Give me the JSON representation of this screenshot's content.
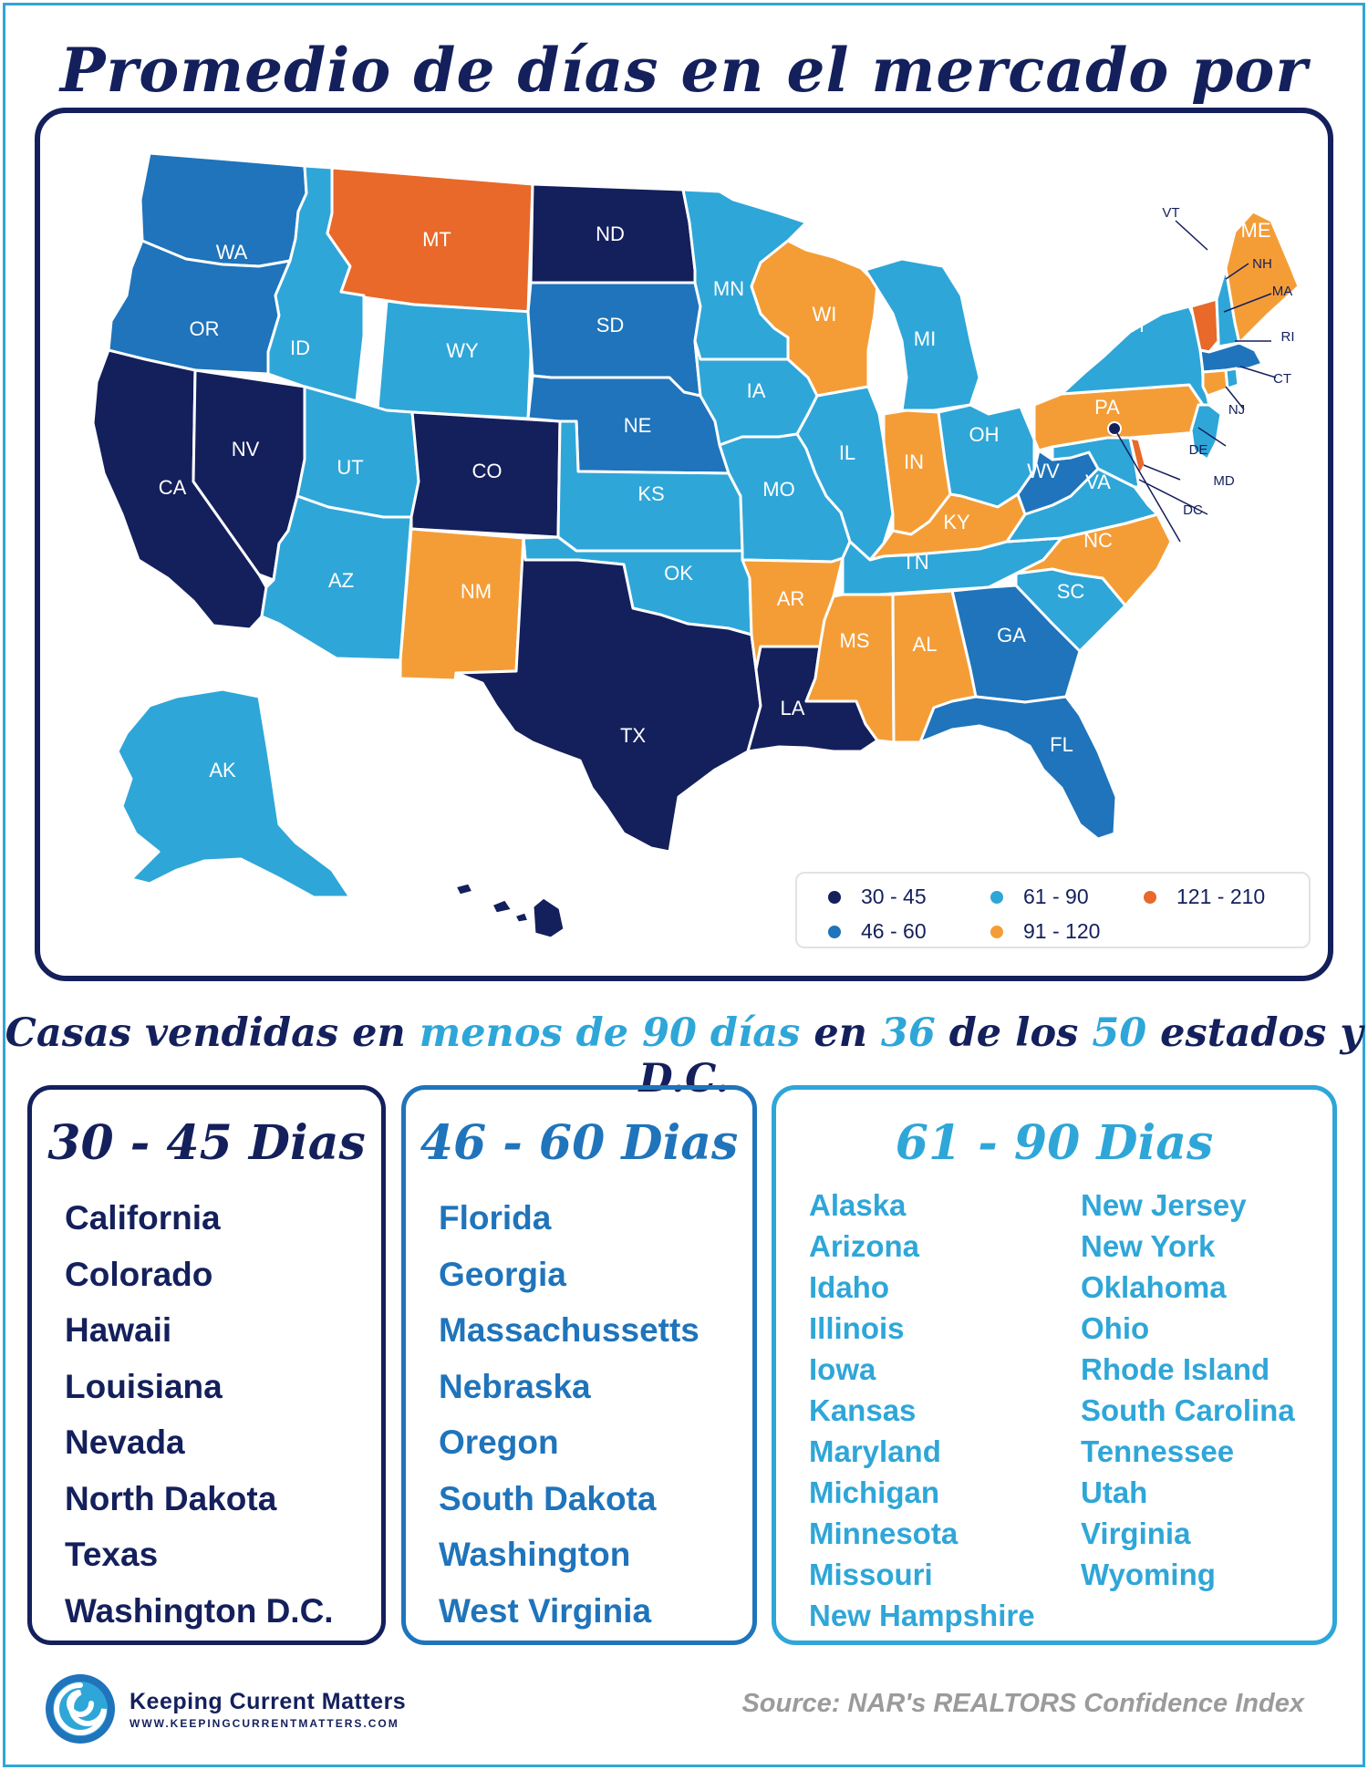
{
  "title": "Promedio de días en el mercado por estado",
  "colors": {
    "c30_45": "#14205c",
    "c46_60": "#1f74bb",
    "c61_90": "#2fa6d8",
    "c91_120": "#f49d37",
    "c121_210": "#e8692a",
    "outline": "#14205c"
  },
  "map": {
    "states": [
      {
        "abbr": "WA",
        "range": "46 - 60"
      },
      {
        "abbr": "OR",
        "range": "46 - 60"
      },
      {
        "abbr": "CA",
        "range": "30 - 45"
      },
      {
        "abbr": "NV",
        "range": "30 - 45"
      },
      {
        "abbr": "ID",
        "range": "61 - 90"
      },
      {
        "abbr": "MT",
        "range": "121 - 210"
      },
      {
        "abbr": "WY",
        "range": "61 - 90"
      },
      {
        "abbr": "UT",
        "range": "61 - 90"
      },
      {
        "abbr": "AZ",
        "range": "61 - 90"
      },
      {
        "abbr": "CO",
        "range": "30 - 45"
      },
      {
        "abbr": "NM",
        "range": "91 - 120"
      },
      {
        "abbr": "ND",
        "range": "30 - 45"
      },
      {
        "abbr": "SD",
        "range": "46 - 60"
      },
      {
        "abbr": "NE",
        "range": "46 - 60"
      },
      {
        "abbr": "KS",
        "range": "61 - 90"
      },
      {
        "abbr": "OK",
        "range": "61 - 90"
      },
      {
        "abbr": "TX",
        "range": "30 - 45"
      },
      {
        "abbr": "MN",
        "range": "61 - 90"
      },
      {
        "abbr": "IA",
        "range": "61 - 90"
      },
      {
        "abbr": "MO",
        "range": "61 - 90"
      },
      {
        "abbr": "AR",
        "range": "91 - 120"
      },
      {
        "abbr": "LA",
        "range": "30 - 45"
      },
      {
        "abbr": "WI",
        "range": "91 - 120"
      },
      {
        "abbr": "IL",
        "range": "61 - 90"
      },
      {
        "abbr": "MI",
        "range": "61 - 90"
      },
      {
        "abbr": "IN",
        "range": "91 - 120"
      },
      {
        "abbr": "OH",
        "range": "61 - 90"
      },
      {
        "abbr": "KY",
        "range": "91 - 120"
      },
      {
        "abbr": "TN",
        "range": "61 - 90"
      },
      {
        "abbr": "MS",
        "range": "91 - 120"
      },
      {
        "abbr": "AL",
        "range": "91 - 120"
      },
      {
        "abbr": "GA",
        "range": "46 - 60"
      },
      {
        "abbr": "FL",
        "range": "46 - 60"
      },
      {
        "abbr": "SC",
        "range": "61 - 90"
      },
      {
        "abbr": "NC",
        "range": "91 - 120"
      },
      {
        "abbr": "VA",
        "range": "61 - 90"
      },
      {
        "abbr": "WV",
        "range": "46 - 60"
      },
      {
        "abbr": "PA",
        "range": "91 - 120"
      },
      {
        "abbr": "NY",
        "range": "61 - 90"
      },
      {
        "abbr": "VT",
        "range": "121 - 210"
      },
      {
        "abbr": "NH",
        "range": "61 - 90"
      },
      {
        "abbr": "ME",
        "range": "91 - 120"
      },
      {
        "abbr": "MA",
        "range": "46 - 60"
      },
      {
        "abbr": "RI",
        "range": "61 - 90"
      },
      {
        "abbr": "CT",
        "range": "91 - 120"
      },
      {
        "abbr": "NJ",
        "range": "61 - 90"
      },
      {
        "abbr": "DE",
        "range": "121 - 210"
      },
      {
        "abbr": "MD",
        "range": "61 - 90"
      },
      {
        "abbr": "DC",
        "range": "30 - 45"
      },
      {
        "abbr": "AK",
        "range": "61 - 90"
      },
      {
        "abbr": "HI",
        "range": "30 - 45"
      }
    ],
    "legend": [
      {
        "label": "30 - 45",
        "color": "#14205c"
      },
      {
        "label": "46 - 60",
        "color": "#1f74bb"
      },
      {
        "label": "61 - 90",
        "color": "#2fa6d8"
      },
      {
        "label": "91 - 120",
        "color": "#f49d37"
      },
      {
        "label": "121 - 210",
        "color": "#e8692a"
      }
    ]
  },
  "subtitle": {
    "p1": "Casas vendidas en ",
    "h1": "menos de 90 días",
    "p2": " en ",
    "h2": "36",
    "p3": " de los ",
    "h3": "50",
    "p4": " estados y D.C."
  },
  "groups": [
    {
      "title": "30 - 45 Dias",
      "states": [
        "California",
        "Colorado",
        "Hawaii",
        "Louisiana",
        "Nevada",
        "North Dakota",
        "Texas",
        "Washington D.C."
      ]
    },
    {
      "title": "46 - 60 Dias",
      "states": [
        "Florida",
        "Georgia",
        "Massachussetts",
        "Nebraska",
        "Oregon",
        "South Dakota",
        "Washington",
        "West Virginia"
      ]
    },
    {
      "title": "61 - 90 Dias",
      "col1": [
        "Alaska",
        "Arizona",
        "Idaho",
        "Illinois",
        "Iowa",
        "Kansas",
        "Maryland",
        "Michigan",
        "Minnesota",
        "Missouri",
        "New Hampshire"
      ],
      "col2": [
        "New Jersey",
        "New York",
        "Oklahoma",
        "Ohio",
        "Rhode Island",
        "South Carolina",
        "Tennessee",
        "Utah",
        "Virginia",
        "Wyoming"
      ]
    }
  ],
  "footer": {
    "brand": "Keeping Current Matters",
    "url": "WWW.KEEPINGCURRENTMATTERS.COM",
    "source": "Source: NAR's REALTORS Confidence Index"
  },
  "logo_icon": "swirl-logo-icon"
}
